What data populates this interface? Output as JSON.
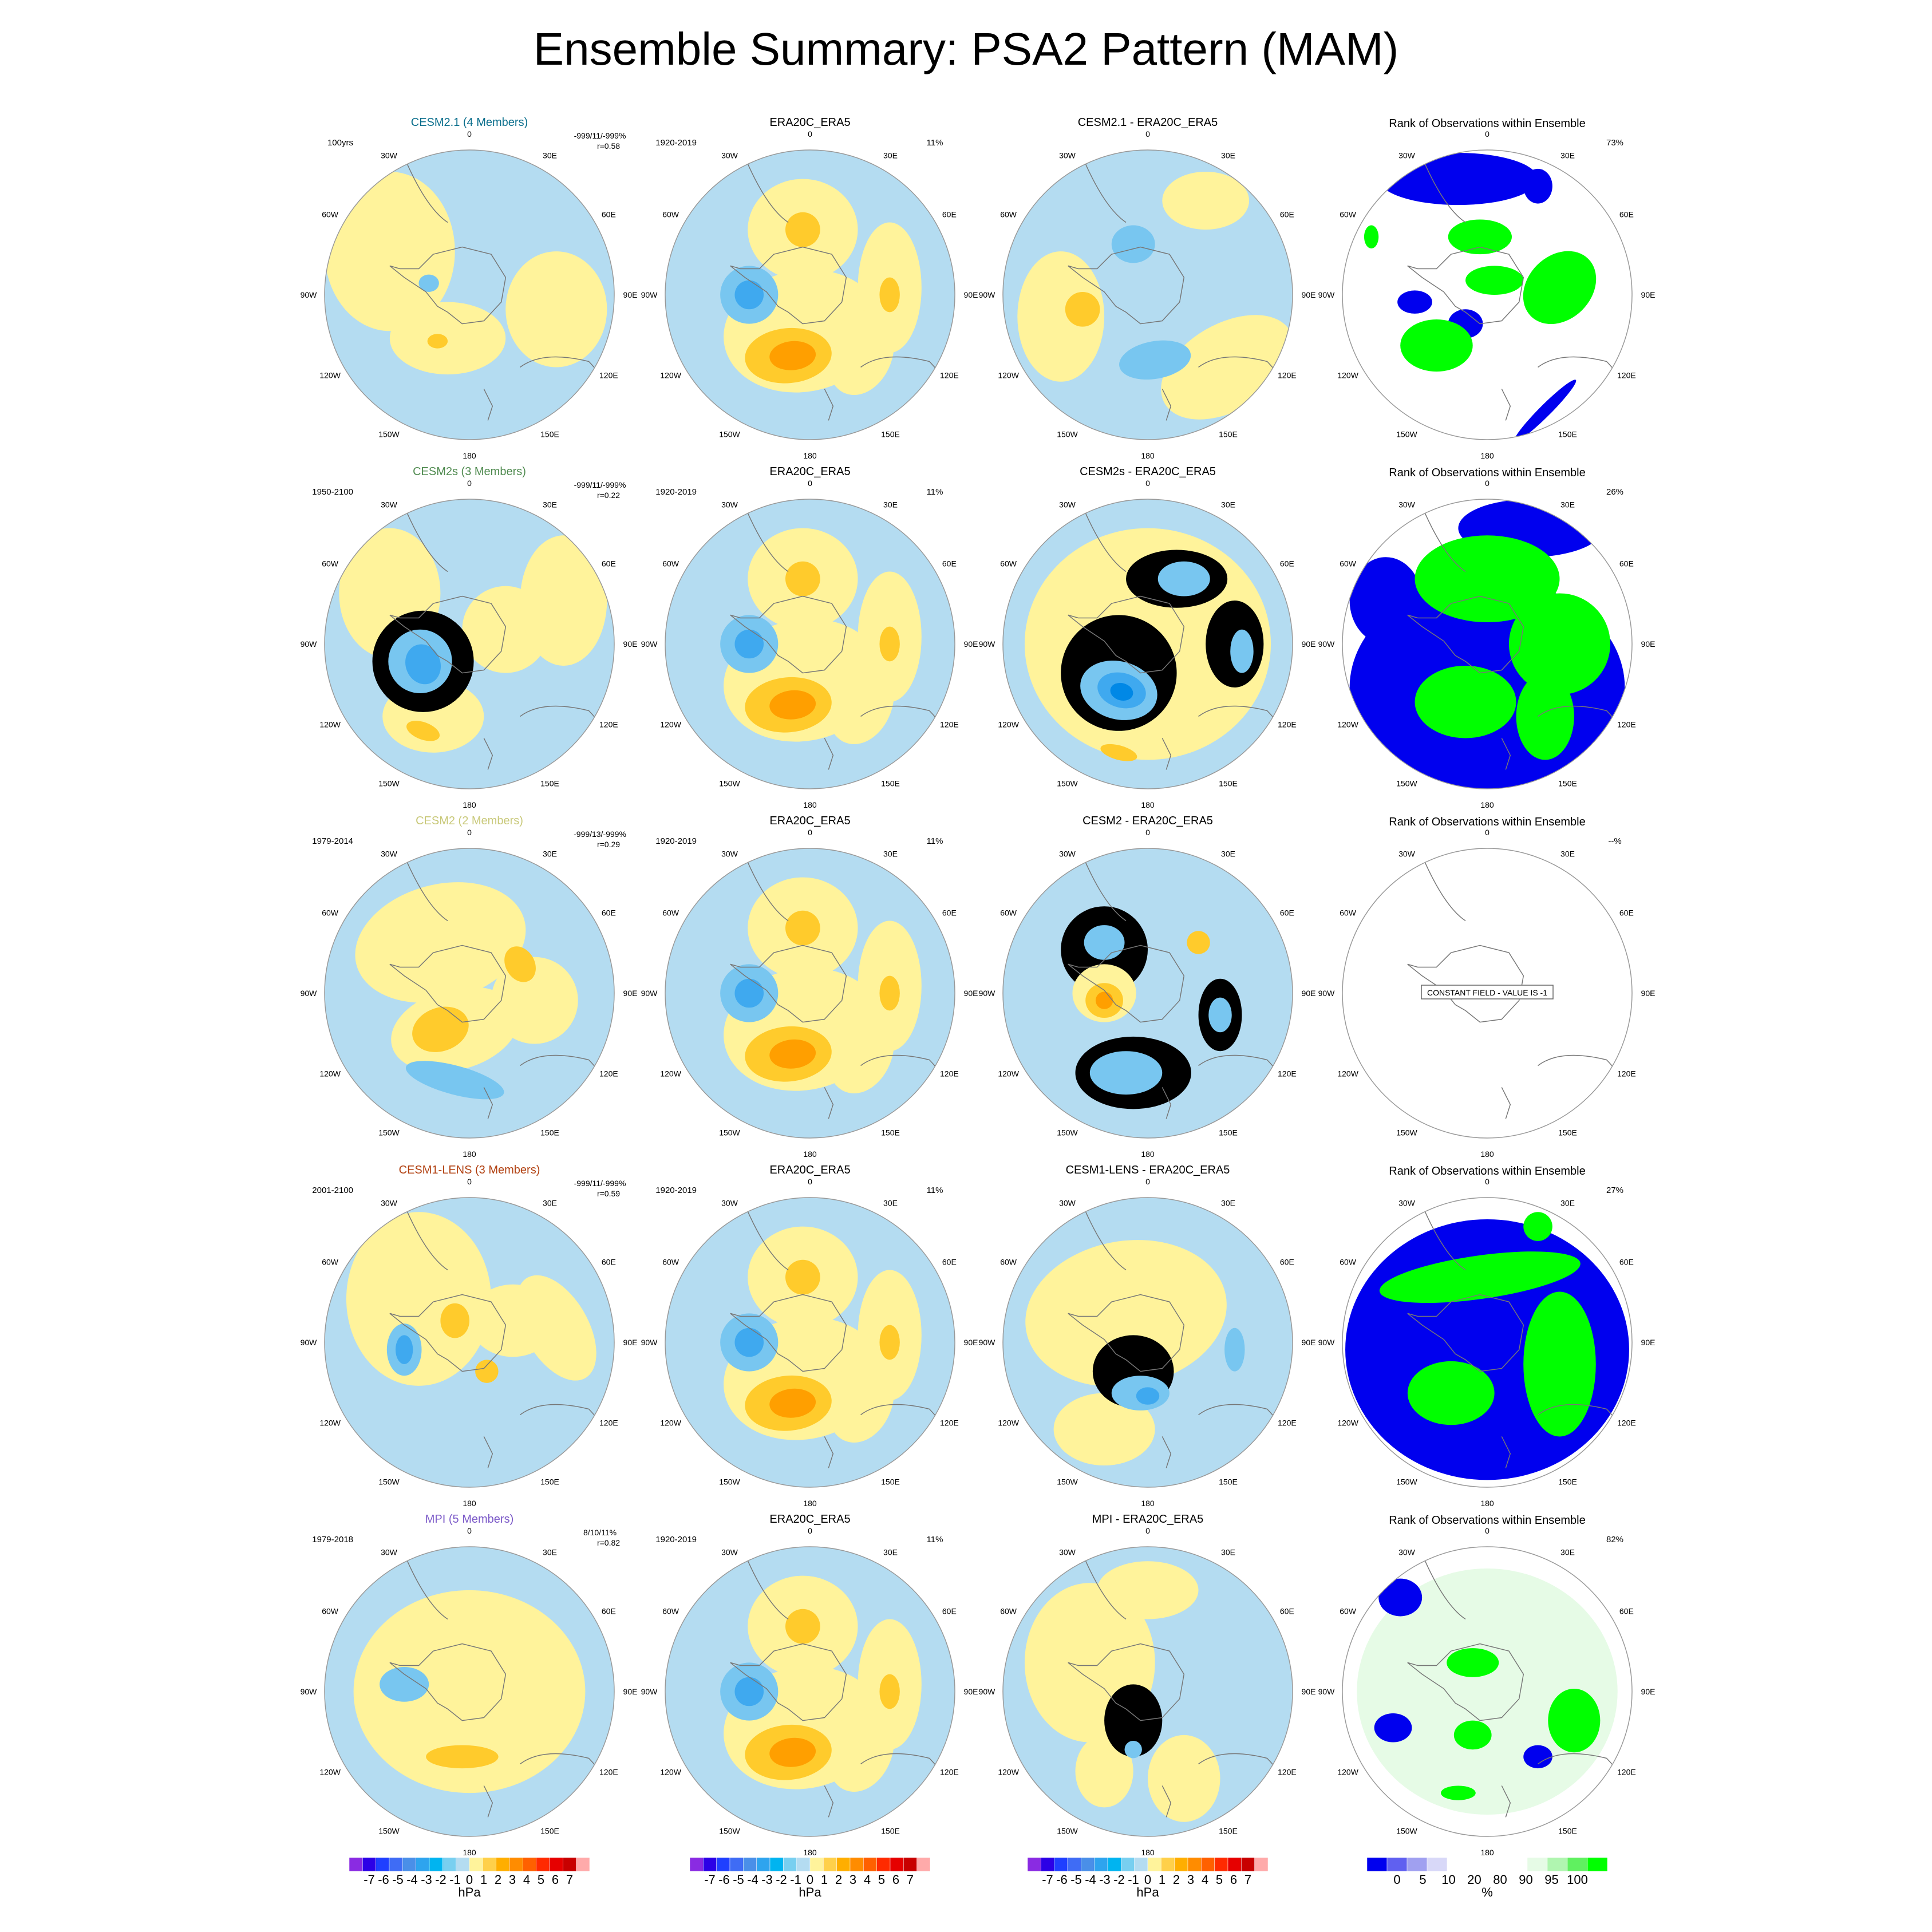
{
  "title": "Ensemble Summary: PSA2 Pattern (MAM)",
  "longitude_labels": [
    "0",
    "30E",
    "60E",
    "90E",
    "120E",
    "150E",
    "180",
    "150W",
    "120W",
    "90W",
    "60W",
    "30W"
  ],
  "colors": {
    "ocean_neg1": "#b4dcf1",
    "neg2": "#78c6f0",
    "neg3": "#3fa9ef",
    "neg4": "#0088e6",
    "pos1": "#fff39b",
    "pos2": "#ffcb2c",
    "pos3": "#ff9f00",
    "rank_low": "#0000ee",
    "rank_high": "#00ff00",
    "rank_light": "#e6fbe6"
  },
  "chart_data": {
    "type": "heatmap",
    "projection": "south polar stereographic",
    "obs_panel": {
      "title": "ERA20C_ERA5",
      "years": "1920-2019",
      "pct": "11%"
    },
    "rank_panel_title": "Rank of Observations within Ensemble",
    "rows": [
      {
        "model": "CESM2.1 (4 Members)",
        "model_color": "#0a6e8c",
        "years": "100yrs",
        "stats_line1": "-999/11/-999%",
        "stats_line2": "r=0.58",
        "diff_title": "CESM2.1 - ERA20C_ERA5",
        "rank_pct": "73%"
      },
      {
        "model": "CESM2s (3 Members)",
        "model_color": "#4f8a4f",
        "years": "1950-2100",
        "stats_line1": "-999/11/-999%",
        "stats_line2": "r=0.22",
        "diff_title": "CESM2s - ERA20C_ERA5",
        "rank_pct": "26%"
      },
      {
        "model": "CESM2 (2 Members)",
        "model_color": "#c8c878",
        "years": "1979-2014",
        "stats_line1": "-999/13/-999%",
        "stats_line2": "r=0.29",
        "diff_title": "CESM2 - ERA20C_ERA5",
        "rank_pct": "--%",
        "rank_note": "CONSTANT FIELD - VALUE IS -1"
      },
      {
        "model": "CESM1-LENS (3 Members)",
        "model_color": "#b14010",
        "years": "2001-2100",
        "stats_line1": "-999/11/-999%",
        "stats_line2": "r=0.59",
        "diff_title": "CESM1-LENS - ERA20C_ERA5",
        "rank_pct": "27%"
      },
      {
        "model": "MPI (5 Members)",
        "model_color": "#7b59c8",
        "years": "1979-2018",
        "stats_line1": "8/10/11%",
        "stats_line2": "r=0.82",
        "diff_title": "MPI - ERA20C_ERA5",
        "rank_pct": "82%"
      }
    ],
    "colorbar_hpa": {
      "ticks": [
        "-7",
        "-6",
        "-5",
        "-4",
        "-3",
        "-2",
        "-1",
        "0",
        "1",
        "2",
        "3",
        "4",
        "5",
        "6",
        "7"
      ],
      "unit": "hPa",
      "colors": [
        "#8a2be2",
        "#2c00e6",
        "#1f3fff",
        "#3f6cf5",
        "#4a8fe8",
        "#2ea4ee",
        "#00b4f0",
        "#78cff0",
        "#b4dcf1",
        "#fff39b",
        "#ffd04a",
        "#ffae00",
        "#ff8c00",
        "#ff6000",
        "#ff2a00",
        "#e60000",
        "#c80000",
        "#ffaaaa"
      ]
    },
    "colorbar_rank": {
      "ticks": [
        "0",
        "5",
        "10",
        "20",
        "80",
        "90",
        "95",
        "100"
      ],
      "unit": "%",
      "colors": [
        "#0000ee",
        "#6060f0",
        "#a0a0f0",
        "#d8d8f8",
        "#ffffff",
        "#ffffff",
        "#ffffff",
        "#ffffff",
        "#e6fbe6",
        "#b0f5b0",
        "#60f060",
        "#00ff00"
      ]
    }
  }
}
